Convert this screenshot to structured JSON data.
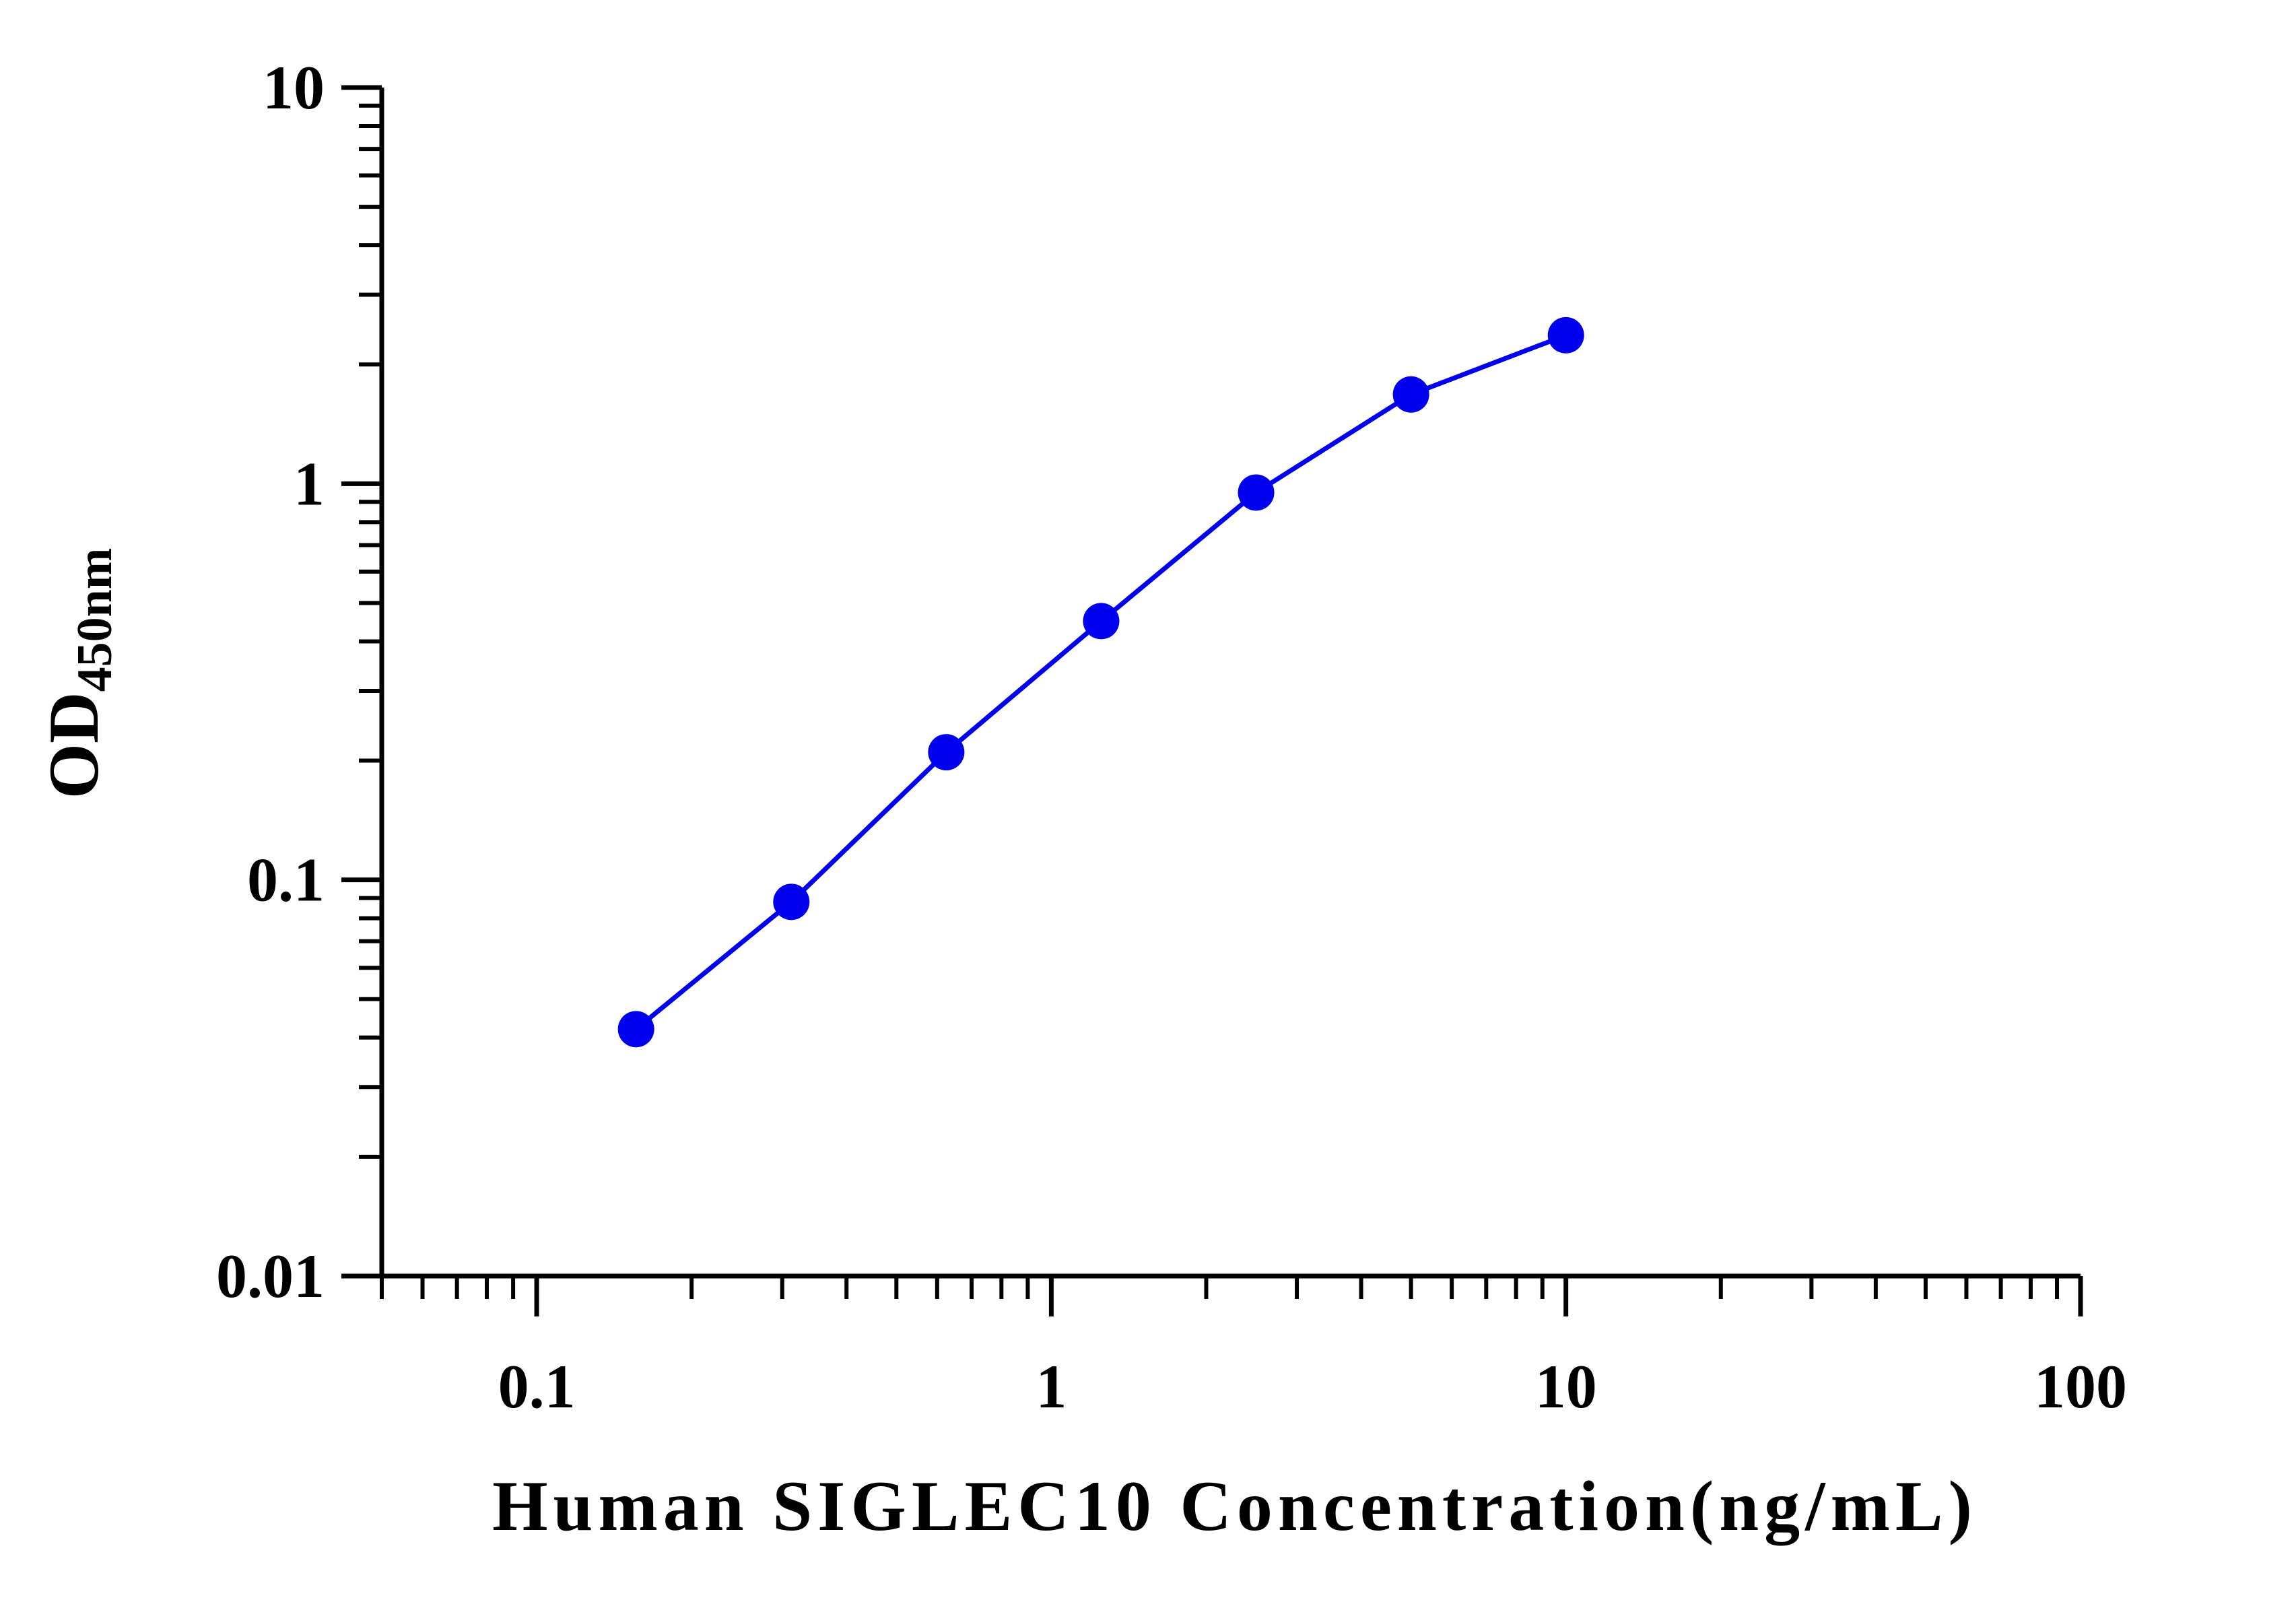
{
  "chart_data": {
    "type": "line",
    "xlabel": "Human SIGLEC10 Concentration(ng/mL)",
    "ylabel": "OD",
    "ylabel_subscript": "450nm",
    "x_scale": "log",
    "y_scale": "log",
    "xlim": [
      0.05,
      100
    ],
    "ylim": [
      0.01,
      10
    ],
    "x_ticks": [
      "0.1",
      "1",
      "10",
      "100"
    ],
    "y_ticks": [
      "0.01",
      "0.1",
      "1",
      "10"
    ],
    "grid": false,
    "series": [
      {
        "color": "#0000ee",
        "x": [
          0.156,
          0.3125,
          0.625,
          1.25,
          2.5,
          5,
          10
        ],
        "y": [
          0.042,
          0.088,
          0.21,
          0.45,
          0.95,
          1.68,
          2.37
        ]
      }
    ]
  }
}
